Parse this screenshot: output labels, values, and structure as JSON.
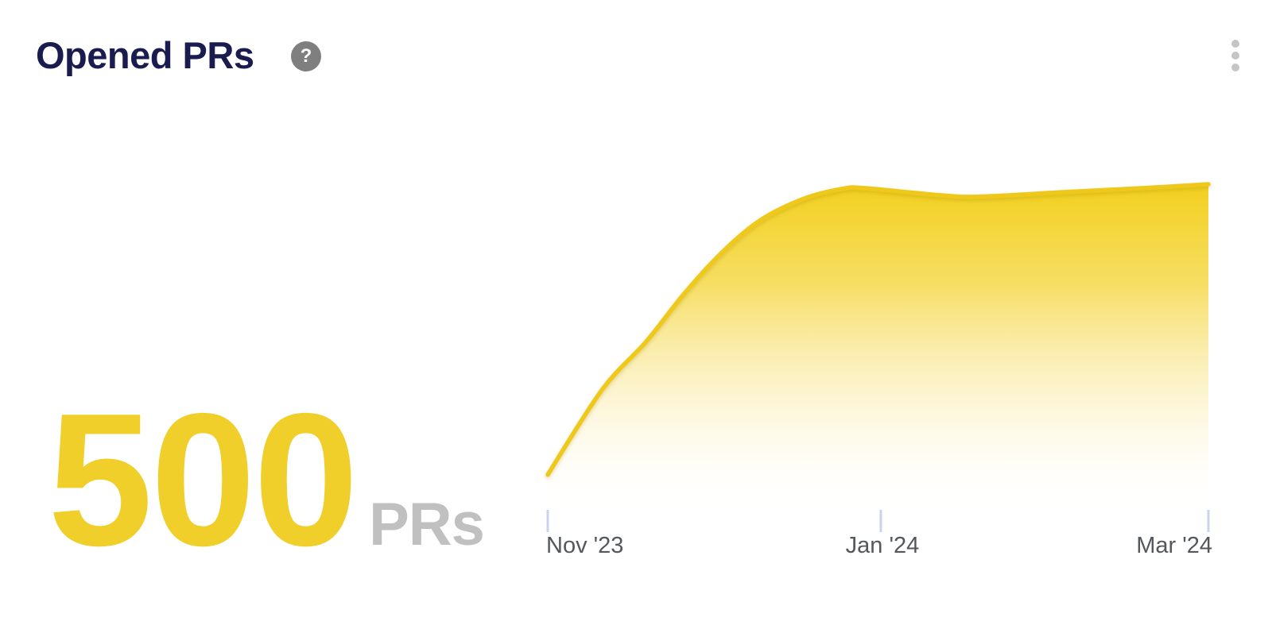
{
  "card": {
    "title": "Opened PRs"
  },
  "icons": {
    "help_glyph": "?"
  },
  "stat": {
    "value": "500",
    "unit": "PRs"
  },
  "colors": {
    "title_navy": "#1A1B4E",
    "stat_value_yellow": "#F0CF2A",
    "stat_unit_gray": "#C0C0C0",
    "line_yellow": "#EEC91C",
    "fill_top_yellow": "#F2CF1D",
    "axis_label_gray": "#54575B",
    "tick_blue": "#C9D4EC",
    "menu_dot_gray": "#C5C5C5",
    "help_bg_gray": "#7F7F7F"
  },
  "chart_data": {
    "type": "area",
    "title": "Opened PRs",
    "xlabel": "",
    "ylabel": "PRs",
    "x_unit": "days since Nov 1, 2023",
    "ylim": [
      0,
      500
    ],
    "grid": false,
    "legend": "none",
    "series": [
      {
        "name": "Opened PRs",
        "x": [
          0,
          10,
          18,
          25,
          32,
          39,
          47,
          54,
          58,
          72,
          79,
          95,
          109,
          121
        ],
        "values": [
          54,
          185,
          258,
          332,
          396,
          445,
          478,
          493,
          494,
          483,
          481,
          488,
          494,
          500
        ]
      }
    ],
    "x_ticks": [
      {
        "label": "Nov '23",
        "x": 0
      },
      {
        "label": "Jan '24",
        "x": 61
      },
      {
        "label": "Mar '24",
        "x": 121
      }
    ]
  }
}
